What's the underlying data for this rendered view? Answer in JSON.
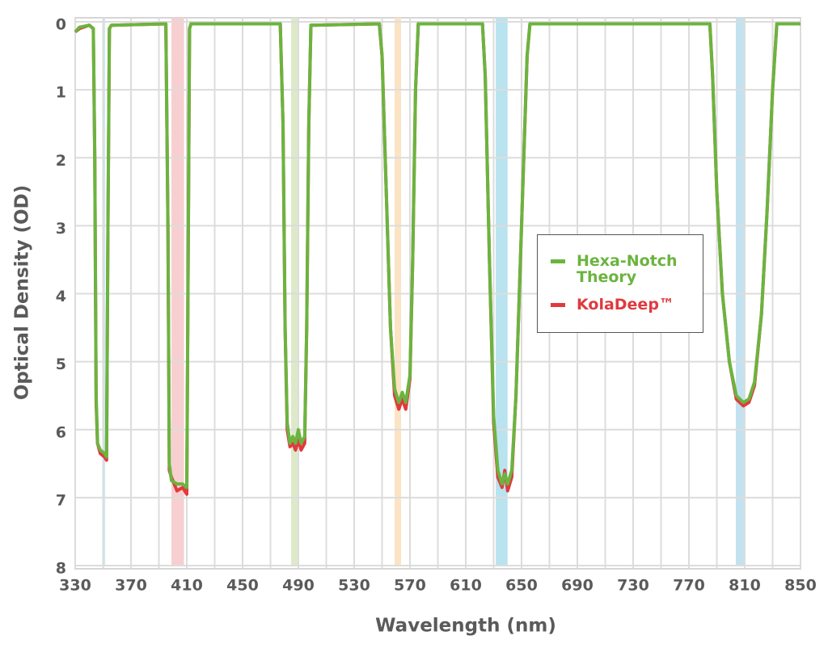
{
  "chart_data": {
    "type": "line",
    "xlabel": "Wavelength (nm)",
    "ylabel": "Optical Density (OD)",
    "xlim": [
      330,
      850
    ],
    "xticks": [
      330,
      370,
      410,
      450,
      490,
      530,
      570,
      610,
      650,
      690,
      730,
      770,
      810,
      850
    ],
    "x_minor_grid": [
      350,
      390,
      430,
      470,
      510,
      550,
      590,
      630,
      670,
      710,
      750,
      790,
      830
    ],
    "ylim": [
      0,
      8
    ],
    "yticks": [
      0,
      1,
      2,
      3,
      4,
      5,
      6,
      7,
      8
    ],
    "y_inverted": true,
    "grid": true,
    "bands": [
      {
        "x0": 349.5,
        "x1": 351.5,
        "color": "#cde9f3"
      },
      {
        "x0": 399,
        "x1": 408,
        "color": "#f7cfd0"
      },
      {
        "x0": 484.8,
        "x1": 489.4,
        "color": "#dde9c8"
      },
      {
        "x0": 559,
        "x1": 563.6,
        "color": "#fbe3c4"
      },
      {
        "x0": 631.5,
        "x1": 640,
        "color": "#b9e3ee"
      },
      {
        "x0": 803.6,
        "x1": 809.4,
        "color": "#c3e2f0"
      }
    ],
    "x": [
      330,
      333,
      340,
      343,
      344,
      345,
      346,
      348,
      351,
      352.5,
      353.5,
      354.5,
      356,
      395,
      396.5,
      397.5,
      399,
      403,
      407,
      410,
      411,
      412,
      413,
      477,
      479,
      480.5,
      482,
      484,
      486,
      488,
      490,
      492,
      494.5,
      496,
      497.5,
      499,
      548,
      550,
      553,
      556,
      559,
      562,
      564.5,
      567,
      570,
      572,
      574,
      576,
      622,
      624,
      627,
      630,
      633,
      636,
      638,
      640,
      643,
      646,
      650,
      654,
      656,
      785,
      787,
      790,
      794,
      799,
      804,
      809,
      813,
      817,
      822,
      826,
      830,
      833,
      850
    ],
    "series": [
      {
        "name": "KolaDeep™",
        "color": "#e03a3e",
        "values": [
          0.15,
          0.1,
          0.05,
          0.1,
          2.0,
          5.6,
          6.2,
          6.35,
          6.4,
          6.45,
          3.0,
          0.1,
          0.05,
          0.03,
          3.0,
          6.6,
          6.7,
          6.9,
          6.85,
          6.95,
          3.5,
          0.1,
          0.03,
          0.03,
          1.5,
          4.5,
          6.0,
          6.25,
          6.2,
          6.3,
          6.15,
          6.3,
          6.2,
          4.5,
          1.5,
          0.05,
          0.03,
          0.5,
          2.5,
          4.5,
          5.5,
          5.7,
          5.55,
          5.7,
          5.25,
          3.5,
          1.0,
          0.03,
          0.03,
          0.8,
          3.5,
          5.9,
          6.7,
          6.85,
          6.6,
          6.9,
          6.7,
          5.5,
          3.0,
          0.5,
          0.03,
          0.03,
          0.8,
          2.5,
          4.0,
          5.0,
          5.55,
          5.65,
          5.6,
          5.35,
          4.3,
          2.8,
          1.0,
          0.03,
          0.03
        ]
      },
      {
        "name": "Hexa-Notch Theory",
        "color": "#6bb43f",
        "values": [
          0.15,
          0.08,
          0.05,
          0.1,
          2.0,
          5.5,
          6.2,
          6.3,
          6.35,
          6.4,
          3.0,
          0.1,
          0.05,
          0.03,
          3.0,
          6.5,
          6.75,
          6.8,
          6.8,
          6.85,
          3.5,
          0.1,
          0.03,
          0.03,
          1.5,
          4.5,
          5.9,
          6.2,
          6.1,
          6.2,
          6.0,
          6.2,
          6.1,
          4.5,
          1.5,
          0.05,
          0.03,
          0.5,
          2.5,
          4.5,
          5.4,
          5.6,
          5.45,
          5.6,
          5.2,
          3.5,
          1.0,
          0.03,
          0.03,
          0.8,
          3.5,
          5.8,
          6.6,
          6.8,
          6.65,
          6.8,
          6.6,
          5.5,
          3.0,
          0.5,
          0.03,
          0.03,
          0.8,
          2.5,
          4.0,
          5.0,
          5.5,
          5.6,
          5.55,
          5.3,
          4.3,
          2.8,
          1.0,
          0.03,
          0.03
        ]
      }
    ]
  }
}
